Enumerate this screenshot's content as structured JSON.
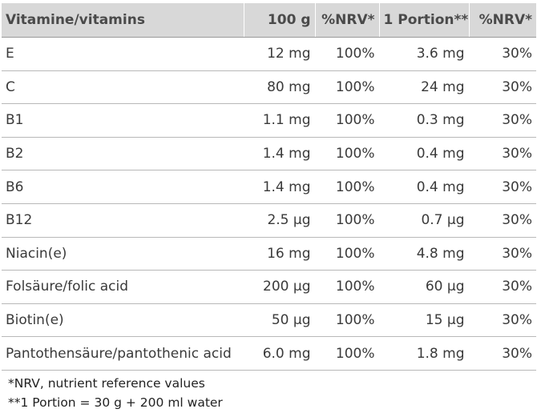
{
  "table": {
    "headers": [
      "Vitamine/vitamins",
      "100 g",
      "%NRV*",
      "1 Portion**",
      "%NRV*"
    ],
    "rows": [
      [
        "E",
        "12 mg",
        "100%",
        "3.6 mg",
        "30%"
      ],
      [
        "C",
        "80 mg",
        "100%",
        "24 mg",
        "30%"
      ],
      [
        "B1",
        "1.1 mg",
        "100%",
        "0.3 mg",
        "30%"
      ],
      [
        "B2",
        "1.4 mg",
        "100%",
        "0.4 mg",
        "30%"
      ],
      [
        "B6",
        "1.4 mg",
        "100%",
        "0.4 mg",
        "30%"
      ],
      [
        "B12",
        "2.5 µg",
        "100%",
        "0.7 µg",
        "30%"
      ],
      [
        "Niacin(e)",
        "16 mg",
        "100%",
        "4.8 mg",
        "30%"
      ],
      [
        "Folsäure/folic acid",
        "200 µg",
        "100%",
        "60 µg",
        "30%"
      ],
      [
        "Biotin(e)",
        "50 µg",
        "100%",
        "15 µg",
        "30%"
      ],
      [
        "Pantothensäure/pantothenic acid",
        "6.0 mg",
        "100%",
        "1.8 mg",
        "30%"
      ]
    ]
  },
  "footnotes": {
    "nrv": "*NRV, nutrient reference values",
    "portion": "**1 Portion = 30 g + 200 ml water"
  },
  "colors": {
    "header_bg": "#d8d8d8",
    "row_border": "#b8b8b8",
    "text": "#3a3a3a"
  }
}
